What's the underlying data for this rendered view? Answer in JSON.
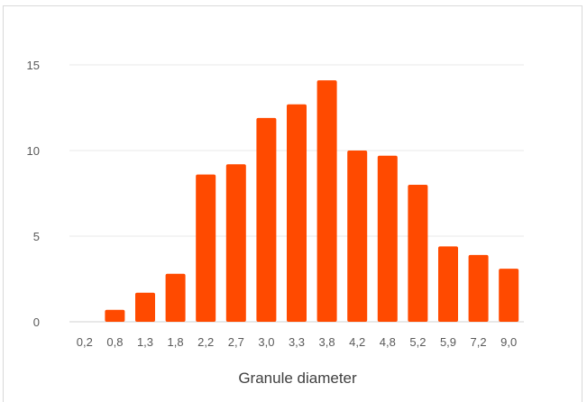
{
  "chart_data": {
    "type": "bar",
    "title": "",
    "xlabel": "Granule diameter",
    "ylabel": "",
    "categories": [
      "0,2",
      "0,8",
      "1,3",
      "1,8",
      "2,2",
      "2,7",
      "3,0",
      "3,3",
      "3,8",
      "4,2",
      "4,8",
      "5,2",
      "5,9",
      "7,2",
      "9,0"
    ],
    "values": [
      0,
      0.7,
      1.7,
      2.8,
      8.6,
      9.2,
      11.9,
      12.7,
      14.1,
      10.0,
      9.7,
      8.0,
      4.4,
      3.9,
      3.1
    ],
    "yticks": [
      "0",
      "5",
      "10",
      "15"
    ],
    "ylim": [
      0,
      15
    ],
    "grid": true,
    "legend": "none",
    "bar_color": "#ff4a00",
    "grid_color": "#e8e8e8"
  }
}
